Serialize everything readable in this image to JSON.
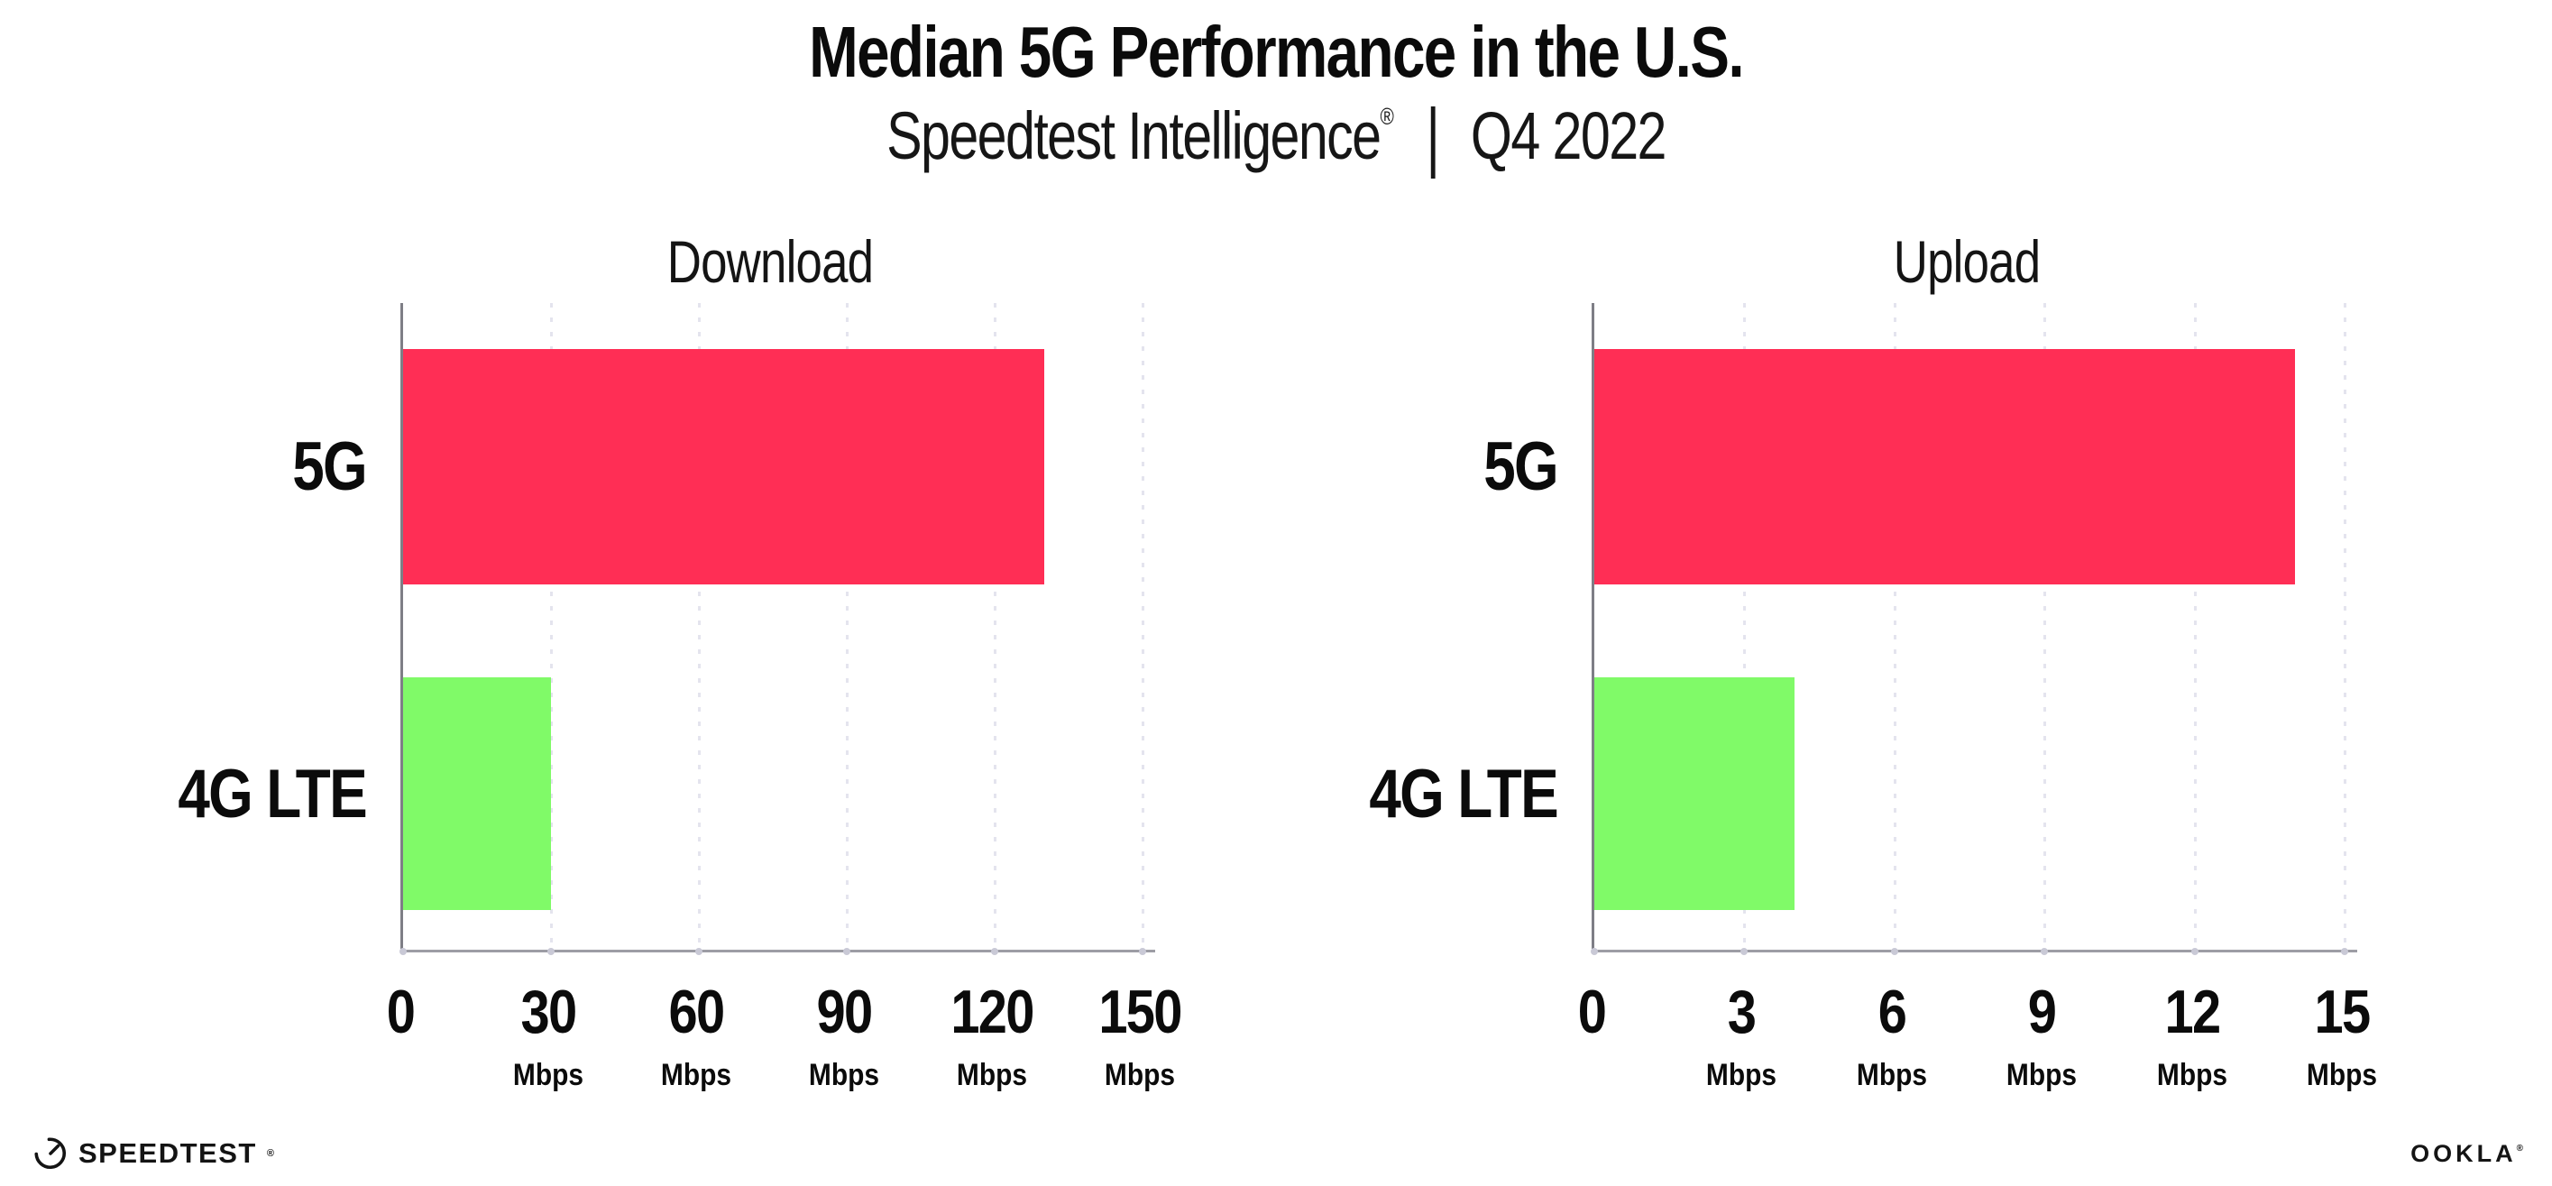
{
  "header": {
    "title": "Median 5G Performance in the U.S.",
    "subtitle_brand": "Speedtest Intelligence",
    "subtitle_reg": "®",
    "subtitle_sep": "|",
    "subtitle_period": "Q4 2022"
  },
  "colors": {
    "bar_5g": "#ff2e55",
    "bar_4g_lte": "#80fa68",
    "gridline": "#e4e4ee",
    "axis_spine": "#9d9da5"
  },
  "charts": [
    {
      "title": "Download",
      "xlim": [
        0,
        150
      ],
      "rows": [
        {
          "label": "5G",
          "value_mbps": 130,
          "color": "#ff2e55"
        },
        {
          "label": "4G LTE",
          "value_mbps": 30,
          "color": "#80fa68"
        }
      ],
      "ticks": [
        {
          "label": "0",
          "unit": ""
        },
        {
          "label": "30",
          "unit": "Mbps"
        },
        {
          "label": "60",
          "unit": "Mbps"
        },
        {
          "label": "90",
          "unit": "Mbps"
        },
        {
          "label": "120",
          "unit": "Mbps"
        },
        {
          "label": "150",
          "unit": "Mbps"
        }
      ]
    },
    {
      "title": "Upload",
      "xlim": [
        0,
        15
      ],
      "rows": [
        {
          "label": "5G",
          "value_mbps": 14,
          "color": "#ff2e55"
        },
        {
          "label": "4G LTE",
          "value_mbps": 4,
          "color": "#80fa68"
        }
      ],
      "ticks": [
        {
          "label": "0",
          "unit": ""
        },
        {
          "label": "3",
          "unit": "Mbps"
        },
        {
          "label": "6",
          "unit": "Mbps"
        },
        {
          "label": "9",
          "unit": "Mbps"
        },
        {
          "label": "12",
          "unit": "Mbps"
        },
        {
          "label": "15",
          "unit": "Mbps"
        }
      ]
    }
  ],
  "footer": {
    "speedtest": "SPEEDTEST",
    "speedtest_mark": "®",
    "ookla": "OOKLA",
    "ookla_mark": "®"
  },
  "chart_data": [
    {
      "type": "bar",
      "orientation": "horizontal",
      "title": "Download",
      "categories": [
        "5G",
        "4G LTE"
      ],
      "values": [
        130,
        30
      ],
      "unit": "Mbps",
      "xlabel": "Mbps",
      "xlim": [
        0,
        150
      ],
      "xticks": [
        0,
        30,
        60,
        90,
        120,
        150
      ],
      "grid": "dotted-vertical",
      "bar_colors": [
        "#ff2e55",
        "#80fa68"
      ]
    },
    {
      "type": "bar",
      "orientation": "horizontal",
      "title": "Upload",
      "categories": [
        "5G",
        "4G LTE"
      ],
      "values": [
        14,
        4
      ],
      "unit": "Mbps",
      "xlabel": "Mbps",
      "xlim": [
        0,
        15
      ],
      "xticks": [
        0,
        3,
        6,
        9,
        12,
        15
      ],
      "grid": "dotted-vertical",
      "bar_colors": [
        "#ff2e55",
        "#80fa68"
      ]
    }
  ]
}
